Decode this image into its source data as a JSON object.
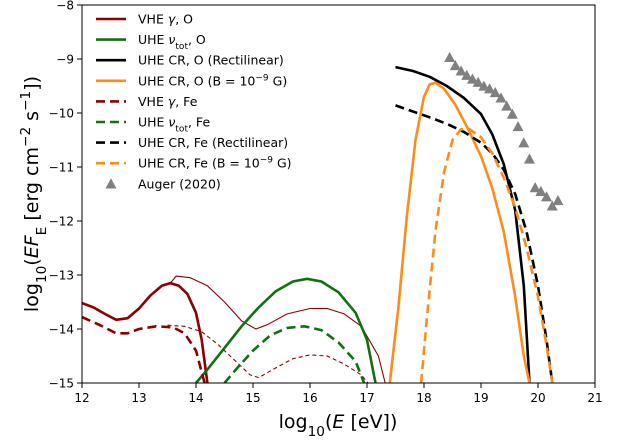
{
  "chart_data": {
    "type": "line",
    "title": "",
    "xlabel": {
      "prefix": "log",
      "sub": "10",
      "mid": "(",
      "ital": "E",
      "rest": " [eV])"
    },
    "ylabel": {
      "prefix": "log",
      "sub": "10",
      "mid": "(",
      "ital": "EF",
      "italsub": "E",
      "rest": " [erg cm",
      "sup1": "−2",
      "rest2": " s",
      "sup2": "−1",
      "end": "])"
    },
    "xlim": [
      12,
      21
    ],
    "ylim": [
      -15,
      -8
    ],
    "x_ticks": [
      12,
      13,
      14,
      15,
      16,
      17,
      18,
      19,
      20,
      21
    ],
    "x_tick_labels": [
      "12",
      "13",
      "14",
      "15",
      "16",
      "17",
      "18",
      "19",
      "20",
      "21"
    ],
    "y_ticks": [
      -15,
      -14,
      -13,
      -12,
      -11,
      -10,
      -9,
      -8
    ],
    "y_tick_labels": [
      "−15",
      "−14",
      "−13",
      "−12",
      "−11",
      "−10",
      "−9",
      "−8"
    ],
    "grid": false,
    "legend_position": "top-left",
    "colors": {
      "vhe_gamma": "#8b0000",
      "uhe_nu": "#006400",
      "uhe_cr_rect": "#000000",
      "uhe_cr_b": "#ff8c1a",
      "auger": "#808080"
    },
    "series": [
      {
        "name": "VHE γ, O",
        "legend_parts": [
          {
            "t": "VHE "
          },
          {
            "t": "γ",
            "style": "italic"
          },
          {
            "t": ", O"
          }
        ],
        "color": "#8b0000",
        "dash": "solid",
        "width": 2.6,
        "points": [
          [
            12.0,
            -13.52
          ],
          [
            12.2,
            -13.6
          ],
          [
            12.4,
            -13.72
          ],
          [
            12.6,
            -13.83
          ],
          [
            12.8,
            -13.8
          ],
          [
            13.0,
            -13.62
          ],
          [
            13.2,
            -13.38
          ],
          [
            13.4,
            -13.2
          ],
          [
            13.55,
            -13.15
          ],
          [
            13.7,
            -13.2
          ],
          [
            13.85,
            -13.35
          ],
          [
            14.0,
            -13.7
          ],
          [
            14.1,
            -14.2
          ],
          [
            14.2,
            -15.0
          ]
        ]
      },
      {
        "name": "VHE γ, O (thin)",
        "color": "#8b0000",
        "dash": "solid",
        "width": 1.1,
        "points": [
          [
            13.55,
            -13.15
          ],
          [
            13.65,
            -13.02
          ],
          [
            13.9,
            -13.05
          ],
          [
            14.2,
            -13.2
          ],
          [
            14.5,
            -13.5
          ],
          [
            14.8,
            -13.85
          ],
          [
            15.05,
            -14.0
          ],
          [
            15.25,
            -13.92
          ],
          [
            15.6,
            -13.72
          ],
          [
            16.0,
            -13.62
          ],
          [
            16.3,
            -13.62
          ],
          [
            16.6,
            -13.72
          ],
          [
            16.9,
            -13.95
          ],
          [
            17.2,
            -14.5
          ],
          [
            17.32,
            -15.0
          ]
        ]
      },
      {
        "name": "UHE ν_tot, O",
        "legend_parts": [
          {
            "t": "UHE "
          },
          {
            "t": "ν",
            "style": "italic"
          },
          {
            "t": "tot",
            "sub": true
          },
          {
            "t": ", O"
          }
        ],
        "color": "#117011",
        "dash": "solid",
        "width": 2.6,
        "points": [
          [
            14.0,
            -15.0
          ],
          [
            14.2,
            -14.75
          ],
          [
            14.5,
            -14.35
          ],
          [
            14.8,
            -13.95
          ],
          [
            15.1,
            -13.6
          ],
          [
            15.4,
            -13.3
          ],
          [
            15.7,
            -13.12
          ],
          [
            15.95,
            -13.07
          ],
          [
            16.2,
            -13.12
          ],
          [
            16.5,
            -13.32
          ],
          [
            16.8,
            -13.7
          ],
          [
            17.0,
            -14.2
          ],
          [
            17.15,
            -15.0
          ]
        ]
      },
      {
        "name": "UHE CR, O (Rectilinear)",
        "legend_parts": [
          {
            "t": "UHE CR, O (Rectilinear)"
          }
        ],
        "color": "#000000",
        "dash": "solid",
        "width": 2.6,
        "points": [
          [
            17.5,
            -9.15
          ],
          [
            17.8,
            -9.22
          ],
          [
            18.1,
            -9.33
          ],
          [
            18.4,
            -9.5
          ],
          [
            18.7,
            -9.72
          ],
          [
            19.0,
            -10.02
          ],
          [
            19.2,
            -10.4
          ],
          [
            19.4,
            -10.95
          ],
          [
            19.6,
            -11.8
          ],
          [
            19.75,
            -13.2
          ],
          [
            19.85,
            -15.0
          ]
        ]
      },
      {
        "name": "UHE CR, O (B = 10^−9 G)",
        "legend_parts": [
          {
            "t": "UHE CR, O (B = 10"
          },
          {
            "t": "−9",
            "sup": true
          },
          {
            "t": " G)"
          }
        ],
        "color": "#ff8c1a",
        "dash": "solid",
        "width": 2.6,
        "points": [
          [
            17.4,
            -15.0
          ],
          [
            17.55,
            -13.6
          ],
          [
            17.7,
            -11.9
          ],
          [
            17.85,
            -10.5
          ],
          [
            18.0,
            -9.7
          ],
          [
            18.1,
            -9.47
          ],
          [
            18.2,
            -9.44
          ],
          [
            18.35,
            -9.55
          ],
          [
            18.55,
            -9.85
          ],
          [
            18.75,
            -10.25
          ],
          [
            19.0,
            -10.8
          ],
          [
            19.2,
            -11.4
          ],
          [
            19.4,
            -12.2
          ],
          [
            19.6,
            -13.4
          ],
          [
            19.75,
            -14.5
          ],
          [
            19.85,
            -15.0
          ]
        ]
      },
      {
        "name": "VHE γ, Fe",
        "legend_parts": [
          {
            "t": "VHE "
          },
          {
            "t": "γ",
            "style": "italic"
          },
          {
            "t": ", Fe"
          }
        ],
        "color": "#8b0000",
        "dash": "dashed",
        "width": 2.6,
        "points": [
          [
            12.0,
            -13.78
          ],
          [
            12.3,
            -13.92
          ],
          [
            12.6,
            -14.08
          ],
          [
            12.8,
            -14.08
          ],
          [
            13.0,
            -14.0
          ],
          [
            13.3,
            -13.95
          ],
          [
            13.6,
            -13.97
          ],
          [
            13.8,
            -14.08
          ],
          [
            14.0,
            -14.4
          ],
          [
            14.1,
            -14.8
          ],
          [
            14.15,
            -15.0
          ]
        ]
      },
      {
        "name": "VHE γ, Fe (thin)",
        "color": "#8b0000",
        "dash": "dashed",
        "width": 1.1,
        "points": [
          [
            13.5,
            -13.93
          ],
          [
            13.8,
            -13.95
          ],
          [
            14.1,
            -14.05
          ],
          [
            14.4,
            -14.3
          ],
          [
            14.7,
            -14.6
          ],
          [
            14.95,
            -14.85
          ],
          [
            15.1,
            -14.9
          ],
          [
            15.4,
            -14.72
          ],
          [
            15.7,
            -14.55
          ],
          [
            16.0,
            -14.48
          ],
          [
            16.3,
            -14.5
          ],
          [
            16.6,
            -14.65
          ],
          [
            16.9,
            -14.85
          ],
          [
            17.02,
            -15.0
          ]
        ]
      },
      {
        "name": "UHE ν_tot, Fe",
        "legend_parts": [
          {
            "t": "UHE "
          },
          {
            "t": "ν",
            "style": "italic"
          },
          {
            "t": "tot",
            "sub": true
          },
          {
            "t": ", Fe"
          }
        ],
        "color": "#117011",
        "dash": "dashed",
        "width": 2.6,
        "points": [
          [
            14.5,
            -15.0
          ],
          [
            14.7,
            -14.75
          ],
          [
            15.0,
            -14.4
          ],
          [
            15.3,
            -14.12
          ],
          [
            15.6,
            -13.98
          ],
          [
            15.9,
            -13.95
          ],
          [
            16.2,
            -14.02
          ],
          [
            16.5,
            -14.25
          ],
          [
            16.8,
            -14.6
          ],
          [
            16.95,
            -15.0
          ]
        ]
      },
      {
        "name": "UHE CR, Fe (Rectilinear)",
        "legend_parts": [
          {
            "t": "UHE CR, Fe (Rectilinear)"
          }
        ],
        "color": "#000000",
        "dash": "dashed",
        "width": 2.6,
        "points": [
          [
            17.5,
            -9.86
          ],
          [
            17.8,
            -9.97
          ],
          [
            18.1,
            -10.08
          ],
          [
            18.4,
            -10.2
          ],
          [
            18.7,
            -10.35
          ],
          [
            19.0,
            -10.55
          ],
          [
            19.2,
            -10.75
          ],
          [
            19.4,
            -11.05
          ],
          [
            19.6,
            -11.5
          ],
          [
            19.8,
            -12.2
          ],
          [
            20.0,
            -13.2
          ],
          [
            20.15,
            -14.2
          ],
          [
            20.25,
            -15.0
          ]
        ]
      },
      {
        "name": "UHE CR, Fe (B = 10^−9 G)",
        "legend_parts": [
          {
            "t": "UHE CR, Fe (B = 10"
          },
          {
            "t": "−9",
            "sup": true
          },
          {
            "t": " G)"
          }
        ],
        "color": "#ff8c1a",
        "dash": "dashed",
        "width": 2.6,
        "points": [
          [
            17.95,
            -15.0
          ],
          [
            18.05,
            -13.8
          ],
          [
            18.2,
            -12.2
          ],
          [
            18.35,
            -11.1
          ],
          [
            18.5,
            -10.5
          ],
          [
            18.65,
            -10.3
          ],
          [
            18.8,
            -10.3
          ],
          [
            19.0,
            -10.45
          ],
          [
            19.2,
            -10.75
          ],
          [
            19.4,
            -11.2
          ],
          [
            19.6,
            -11.75
          ],
          [
            19.8,
            -12.5
          ],
          [
            20.0,
            -13.4
          ],
          [
            20.15,
            -14.3
          ],
          [
            20.25,
            -15.0
          ]
        ]
      }
    ],
    "scatter": {
      "name": "Auger (2020)",
      "legend_parts": [
        {
          "t": "Auger (2020)"
        }
      ],
      "color": "#808080",
      "marker": "triangle",
      "points": [
        [
          18.45,
          -8.97
        ],
        [
          18.55,
          -9.12
        ],
        [
          18.65,
          -9.22
        ],
        [
          18.75,
          -9.3
        ],
        [
          18.85,
          -9.37
        ],
        [
          18.95,
          -9.43
        ],
        [
          19.05,
          -9.5
        ],
        [
          19.15,
          -9.55
        ],
        [
          19.25,
          -9.62
        ],
        [
          19.35,
          -9.72
        ],
        [
          19.45,
          -9.87
        ],
        [
          19.55,
          -10.02
        ],
        [
          19.65,
          -10.25
        ],
        [
          19.75,
          -10.55
        ],
        [
          19.85,
          -10.85
        ],
        [
          19.95,
          -11.38
        ],
        [
          20.05,
          -11.45
        ],
        [
          20.15,
          -11.55
        ],
        [
          20.25,
          -11.72
        ],
        [
          20.35,
          -11.62
        ]
      ]
    }
  }
}
